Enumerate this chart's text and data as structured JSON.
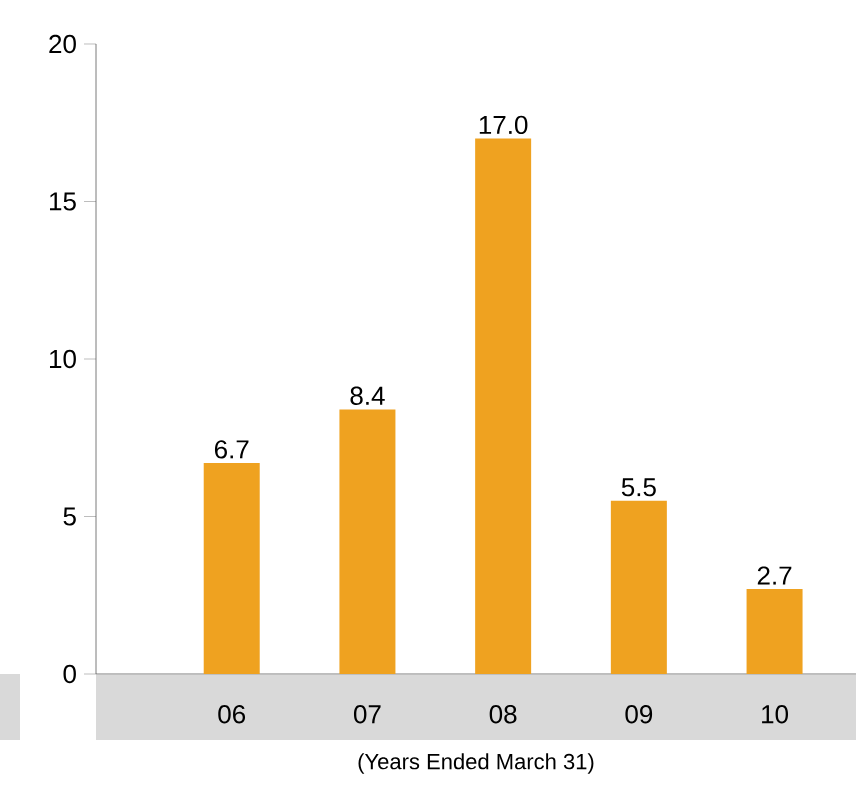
{
  "chart_data": {
    "type": "bar",
    "categories": [
      "06",
      "07",
      "08",
      "09",
      "10"
    ],
    "values": [
      6.7,
      8.4,
      17.0,
      5.5,
      2.7
    ],
    "value_labels": [
      "6.7",
      "8.4",
      "17.0",
      "5.5",
      "2.7"
    ],
    "color": "#efa220",
    "ylim": [
      0,
      20
    ],
    "yticks": [
      0,
      5,
      10,
      15,
      20
    ],
    "xlabel": "(Years Ended March 31)"
  }
}
